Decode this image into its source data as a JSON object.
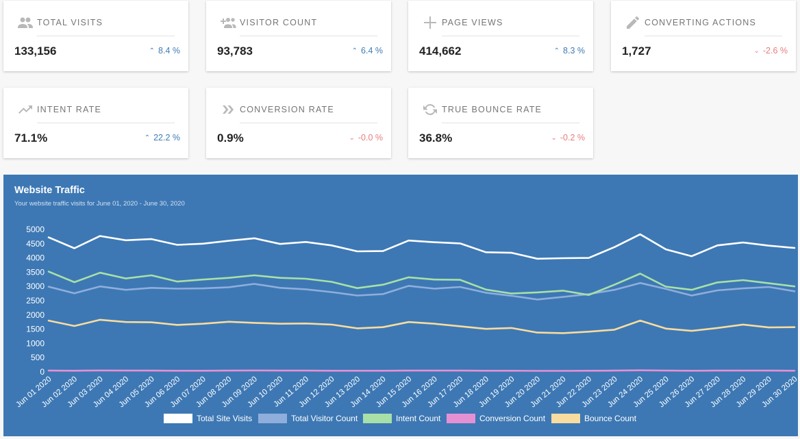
{
  "cards": [
    {
      "label": "TOTAL VISITS",
      "value": "133,156",
      "change": "8.4 %",
      "dir": "up",
      "icon": "people-icon"
    },
    {
      "label": "VISITOR COUNT",
      "value": "93,783",
      "change": "6.4 %",
      "dir": "up",
      "icon": "group-add-icon"
    },
    {
      "label": "PAGE VIEWS",
      "value": "414,662",
      "change": "8.3 %",
      "dir": "up",
      "icon": "plus-icon"
    },
    {
      "label": "CONVERTING ACTIONS",
      "value": "1,727",
      "change": "-2.6 %",
      "dir": "down",
      "icon": "pencil-icon"
    },
    {
      "label": "INTENT RATE",
      "value": "71.1%",
      "change": "22.2 %",
      "dir": "up",
      "icon": "trending-up-icon"
    },
    {
      "label": "CONVERSION RATE",
      "value": "0.9%",
      "change": "-0.0 %",
      "dir": "down",
      "icon": "double-chevron-right-icon"
    },
    {
      "label": "TRUE BOUNCE RATE",
      "value": "36.8%",
      "change": "-0.2 %",
      "dir": "down",
      "icon": "refresh-icon"
    }
  ],
  "chart_data": {
    "type": "line",
    "title": "Website Traffic",
    "subtitle": "Your website traffic visits for June 01, 2020 - June 30, 2020",
    "categories": [
      "Jun 01 2020",
      "Jun 02 2020",
      "Jun 03 2020",
      "Jun 04 2020",
      "Jun 05 2020",
      "Jun 06 2020",
      "Jun 07 2020",
      "Jun 08 2020",
      "Jun 09 2020",
      "Jun 10 2020",
      "Jun 11 2020",
      "Jun 12 2020",
      "Jun 13 2020",
      "Jun 14 2020",
      "Jun 15 2020",
      "Jun 16 2020",
      "Jun 17 2020",
      "Jun 18 2020",
      "Jun 19 2020",
      "Jun 20 2020",
      "Jun 21 2020",
      "Jun 22 2020",
      "Jun 23 2020",
      "Jun 24 2020",
      "Jun 25 2020",
      "Jun 26 2020",
      "Jun 27 2020",
      "Jun 28 2020",
      "Jun 29 2020",
      "Jun 30 2020"
    ],
    "ylim": [
      0,
      5000
    ],
    "yticks": [
      0,
      500,
      1000,
      1500,
      2000,
      2500,
      3000,
      3500,
      4000,
      4500,
      5000
    ],
    "legend_position": "bottom",
    "grid": false,
    "series": [
      {
        "name": "Total Site Visits",
        "color": "#ffffff",
        "values": [
          4720,
          4340,
          4770,
          4620,
          4660,
          4460,
          4500,
          4600,
          4690,
          4490,
          4560,
          4440,
          4230,
          4240,
          4610,
          4550,
          4510,
          4200,
          4180,
          3970,
          3990,
          4000,
          4380,
          4830,
          4300,
          4060,
          4440,
          4540,
          4430,
          4350
        ]
      },
      {
        "name": "Total Visitor Count",
        "color": "#8faedb",
        "values": [
          2990,
          2760,
          3000,
          2880,
          2950,
          2920,
          2930,
          2970,
          3090,
          2950,
          2900,
          2800,
          2680,
          2730,
          3020,
          2920,
          2980,
          2780,
          2670,
          2540,
          2630,
          2730,
          2880,
          3120,
          2910,
          2680,
          2860,
          2930,
          2980,
          2830
        ]
      },
      {
        "name": "Intent Count",
        "color": "#a8e0a8",
        "values": [
          3520,
          3150,
          3480,
          3280,
          3390,
          3170,
          3240,
          3300,
          3390,
          3300,
          3270,
          3160,
          2940,
          3060,
          3320,
          3240,
          3230,
          2890,
          2750,
          2790,
          2850,
          2700,
          3060,
          3450,
          2990,
          2880,
          3140,
          3220,
          3110,
          3000
        ]
      },
      {
        "name": "Conversion Count",
        "color": "#e690d4",
        "values": [
          45,
          40,
          50,
          45,
          45,
          40,
          40,
          45,
          50,
          45,
          45,
          40,
          40,
          40,
          45,
          45,
          45,
          40,
          40,
          35,
          35,
          40,
          45,
          55,
          45,
          40,
          45,
          45,
          45,
          40
        ]
      },
      {
        "name": "Bounce Count",
        "color": "#f8dca0",
        "values": [
          1800,
          1610,
          1830,
          1750,
          1740,
          1650,
          1690,
          1760,
          1720,
          1690,
          1700,
          1660,
          1530,
          1570,
          1750,
          1690,
          1600,
          1510,
          1540,
          1380,
          1360,
          1410,
          1480,
          1800,
          1520,
          1440,
          1540,
          1660,
          1560,
          1570
        ]
      }
    ]
  }
}
